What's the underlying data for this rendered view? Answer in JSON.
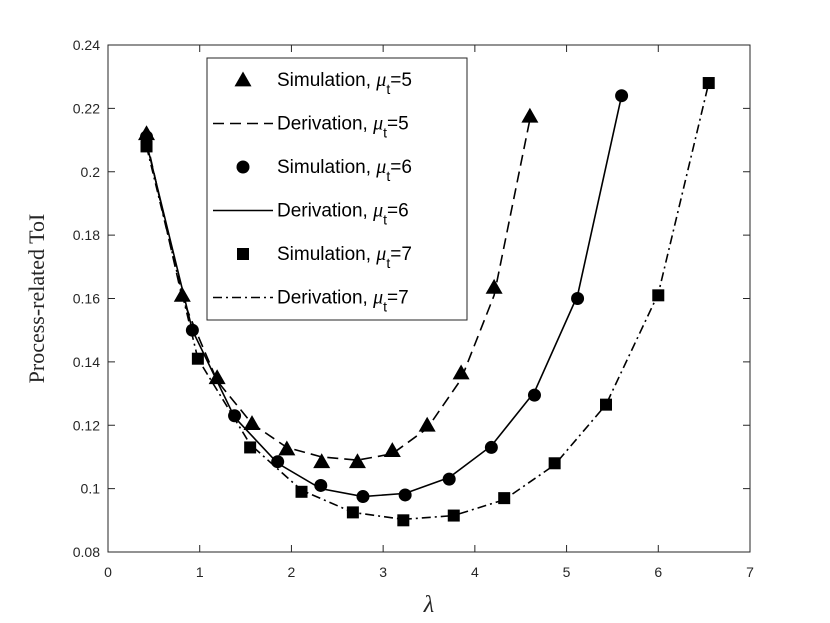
{
  "chart_data": {
    "type": "line",
    "xlabel": "λ",
    "ylabel": "Process-related ToI",
    "xlim": [
      0,
      7
    ],
    "ylim": [
      0.08,
      0.24
    ],
    "xticks": [
      "0",
      "1",
      "2",
      "3",
      "4",
      "5",
      "6",
      "7"
    ],
    "yticks": [
      "0.08",
      "0.1",
      "0.12",
      "0.14",
      "0.16",
      "0.18",
      "0.2",
      "0.22",
      "0.24"
    ],
    "grid": false,
    "legend_position": "top-center",
    "series": [
      {
        "name": "Simulation, μt=5",
        "legend_prefix": "Simulation, ",
        "legend_symbol": "μ",
        "legend_subscript": "t",
        "legend_suffix": "=5",
        "kind": "marker",
        "marker": "triangle",
        "x": [
          0.42,
          0.81,
          1.19,
          1.57,
          1.95,
          2.33,
          2.72,
          3.1,
          3.48,
          3.85,
          4.21,
          4.6
        ],
        "y": [
          0.212,
          0.161,
          0.135,
          0.1205,
          0.1125,
          0.1085,
          0.1085,
          0.112,
          0.12,
          0.1365,
          0.1635,
          0.2175
        ]
      },
      {
        "name": "Derivation, μt=5",
        "legend_prefix": "Derivation, ",
        "legend_symbol": "μ",
        "legend_subscript": "t",
        "legend_suffix": "=5",
        "kind": "line",
        "dash": "dashed",
        "x": [
          0.42,
          0.81,
          1.19,
          1.57,
          1.95,
          2.33,
          2.72,
          3.1,
          3.48,
          3.85,
          4.21,
          4.6
        ],
        "y": [
          0.21,
          0.16,
          0.134,
          0.1205,
          0.113,
          0.11,
          0.109,
          0.111,
          0.119,
          0.1345,
          0.161,
          0.2165
        ]
      },
      {
        "name": "Simulation, μt=6",
        "legend_prefix": "Simulation, ",
        "legend_symbol": "μ",
        "legend_subscript": "t",
        "legend_suffix": "=6",
        "kind": "marker",
        "marker": "circle",
        "x": [
          0.42,
          0.92,
          1.38,
          1.85,
          2.32,
          2.78,
          3.24,
          3.72,
          4.18,
          4.65,
          5.12,
          5.6
        ],
        "y": [
          0.211,
          0.15,
          0.123,
          0.1085,
          0.101,
          0.0975,
          0.098,
          0.103,
          0.113,
          0.1295,
          0.16,
          0.224
        ]
      },
      {
        "name": "Derivation, μt=6",
        "legend_prefix": "Derivation, ",
        "legend_symbol": "μ",
        "legend_subscript": "t",
        "legend_suffix": "=6",
        "kind": "line",
        "dash": "solid",
        "x": [
          0.42,
          0.92,
          1.38,
          1.85,
          2.32,
          2.78,
          3.24,
          3.72,
          4.18,
          4.65,
          5.12,
          5.6
        ],
        "y": [
          0.209,
          0.15,
          0.1225,
          0.108,
          0.1,
          0.0975,
          0.0985,
          0.1035,
          0.1135,
          0.1305,
          0.161,
          0.224
        ]
      },
      {
        "name": "Simulation, μt=7",
        "legend_prefix": "Simulation, ",
        "legend_symbol": "μ",
        "legend_subscript": "t",
        "legend_suffix": "=7",
        "kind": "marker",
        "marker": "square",
        "x": [
          0.42,
          0.98,
          1.55,
          2.11,
          2.67,
          3.22,
          3.77,
          4.32,
          4.87,
          5.43,
          6.0,
          6.55
        ],
        "y": [
          0.208,
          0.141,
          0.113,
          0.099,
          0.0925,
          0.09,
          0.0915,
          0.097,
          0.108,
          0.1265,
          0.161,
          0.228
        ]
      },
      {
        "name": "Derivation, μt=7",
        "legend_prefix": "Derivation, ",
        "legend_symbol": "μ",
        "legend_subscript": "t",
        "legend_suffix": "=7",
        "kind": "line",
        "dash": "dashdot",
        "x": [
          0.42,
          0.98,
          1.55,
          2.11,
          2.67,
          3.22,
          3.77,
          4.32,
          4.87,
          5.43,
          6.0,
          6.55
        ],
        "y": [
          0.208,
          0.141,
          0.114,
          0.0995,
          0.0925,
          0.0903,
          0.0915,
          0.0965,
          0.1075,
          0.1265,
          0.1615,
          0.228
        ]
      }
    ],
    "colors": {
      "ink": "#000000",
      "axis": "#262626",
      "background": "#ffffff"
    }
  }
}
